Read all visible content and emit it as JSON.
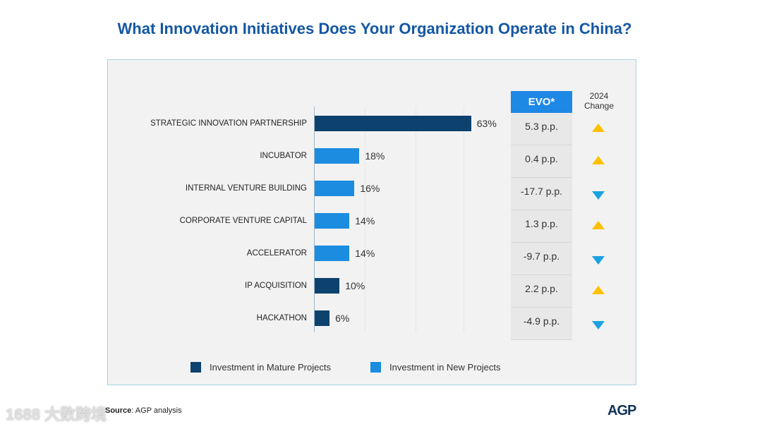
{
  "title": "What Innovation Initiatives Does Your Organization Operate in China?",
  "chart_data": {
    "type": "bar",
    "orientation": "horizontal",
    "title": "What Innovation Initiatives Does Your Organization Operate in China?",
    "categories": [
      "STRATEGIC INNOVATION PARTNERSHIP",
      "INCUBATOR",
      "INTERNAL VENTURE BUILDING",
      "CORPORATE VENTURE CAPITAL",
      "ACCELERATOR",
      "IP ACQUISITION",
      "HACKATHON"
    ],
    "values": [
      63,
      18,
      16,
      14,
      14,
      10,
      6
    ],
    "value_labels": [
      "63%",
      "18%",
      "16%",
      "14%",
      "14%",
      "10%",
      "6%"
    ],
    "series_type": [
      "mature",
      "new",
      "new",
      "new",
      "new",
      "mature",
      "mature"
    ],
    "legend": [
      {
        "name": "Investment in Mature Projects",
        "color": "#0d416e"
      },
      {
        "name": "Investment in New Projects",
        "color": "#1b8ce0"
      }
    ],
    "legend_position": "bottom",
    "xlim": [
      0,
      100
    ]
  },
  "evo": {
    "header": "EVO*",
    "values": [
      "5.3 p.p.",
      "0.4 p.p.",
      "-17.7 p.p.",
      "1.3 p.p.",
      "-9.7 p.p.",
      "2.2 p.p.",
      "-4.9 p.p."
    ]
  },
  "change": {
    "header_line1": "2024",
    "header_line2": "Change",
    "directions": [
      "up",
      "up",
      "down",
      "up",
      "down",
      "up",
      "down"
    ]
  },
  "colors": {
    "up": "#ffc000",
    "down": "#1aa3e0"
  },
  "source": {
    "label": "Source",
    "text": ": AGP analysis"
  },
  "watermark": "1688 大数跨境",
  "logo": "AGP"
}
